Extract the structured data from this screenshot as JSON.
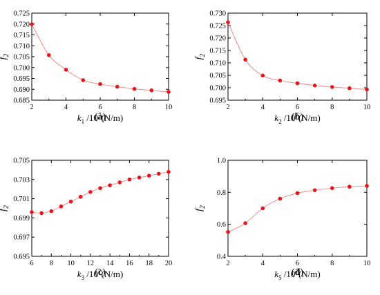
{
  "chart_data": [
    {
      "type": "line",
      "panel_label": "(a)",
      "ylabel": "f2",
      "xlabel": "k1 /10^7(N/m)",
      "xlim": [
        2,
        10
      ],
      "ylim": [
        0.685,
        0.725
      ],
      "xticks": [
        2,
        4,
        6,
        8,
        10
      ],
      "yticks": [
        0.685,
        0.69,
        0.695,
        0.7,
        0.705,
        0.71,
        0.715,
        0.72,
        0.725
      ],
      "ytick_labels": [
        "0.685",
        "0.690",
        "0.695",
        "0.700",
        "0.705",
        "0.710",
        "0.715",
        "0.720",
        "0.725"
      ],
      "x": [
        2,
        3,
        4,
        5,
        6,
        7,
        8,
        9,
        10
      ],
      "y": [
        0.7199,
        0.7057,
        0.699,
        0.6942,
        0.6924,
        0.6912,
        0.6902,
        0.6895,
        0.6888
      ],
      "grid": false,
      "marker_color": "#e8141b",
      "line_color": "#f28a8c"
    },
    {
      "type": "line",
      "panel_label": "(b)",
      "ylabel": "f2",
      "xlabel": "k2 /10^7(N/m)",
      "xlim": [
        2,
        10
      ],
      "ylim": [
        0.695,
        0.73
      ],
      "xticks": [
        2,
        4,
        6,
        8,
        10
      ],
      "yticks": [
        0.695,
        0.7,
        0.705,
        0.71,
        0.715,
        0.72,
        0.725,
        0.73
      ],
      "ytick_labels": [
        "0.695",
        "0.700",
        "0.705",
        "0.710",
        "0.715",
        "0.720",
        "0.725",
        "0.730"
      ],
      "x": [
        2,
        3,
        4,
        5,
        6,
        7,
        8,
        9,
        10
      ],
      "y": [
        0.7263,
        0.7113,
        0.7049,
        0.7029,
        0.7018,
        0.7009,
        0.7003,
        0.6998,
        0.6993
      ],
      "grid": false,
      "marker_color": "#e8141b",
      "line_color": "#f28a8c"
    },
    {
      "type": "line",
      "panel_label": "(c)",
      "ylabel": "f2",
      "xlabel": "k3 /10^7(N/m)",
      "xlim": [
        6,
        20
      ],
      "ylim": [
        0.695,
        0.705
      ],
      "xticks": [
        6,
        8,
        10,
        12,
        14,
        16,
        18,
        20
      ],
      "yticks": [
        0.695,
        0.697,
        0.699,
        0.701,
        0.703,
        0.705
      ],
      "ytick_labels": [
        "0.695",
        "0.697",
        "0.699",
        "0.701",
        "0.703",
        "0.705"
      ],
      "x": [
        6,
        7,
        8,
        9,
        10,
        11,
        12,
        13,
        14,
        15,
        16,
        17,
        18,
        19,
        20
      ],
      "y": [
        0.6996,
        0.6995,
        0.6997,
        0.7002,
        0.7007,
        0.7012,
        0.7017,
        0.7021,
        0.7024,
        0.7027,
        0.703,
        0.7032,
        0.7034,
        0.7036,
        0.7038
      ],
      "grid": false,
      "marker_color": "#e8141b",
      "line_color": "#f28a8c"
    },
    {
      "type": "line",
      "panel_label": "(d)",
      "ylabel": "f2",
      "xlabel": "k5 /10^7(N/m)",
      "xlim": [
        2,
        10
      ],
      "ylim": [
        0.4,
        1.0
      ],
      "xticks": [
        2,
        4,
        6,
        8,
        10
      ],
      "yticks": [
        0.4,
        0.6,
        0.8,
        1.0
      ],
      "ytick_labels": [
        "0.4",
        "0.6",
        "0.8",
        "1.0"
      ],
      "x": [
        2,
        3,
        4,
        5,
        6,
        7,
        8,
        9,
        10
      ],
      "y": [
        0.552,
        0.607,
        0.7,
        0.76,
        0.795,
        0.813,
        0.826,
        0.835,
        0.84
      ],
      "grid": false,
      "marker_color": "#e8141b",
      "line_color": "#f28a8c"
    }
  ]
}
